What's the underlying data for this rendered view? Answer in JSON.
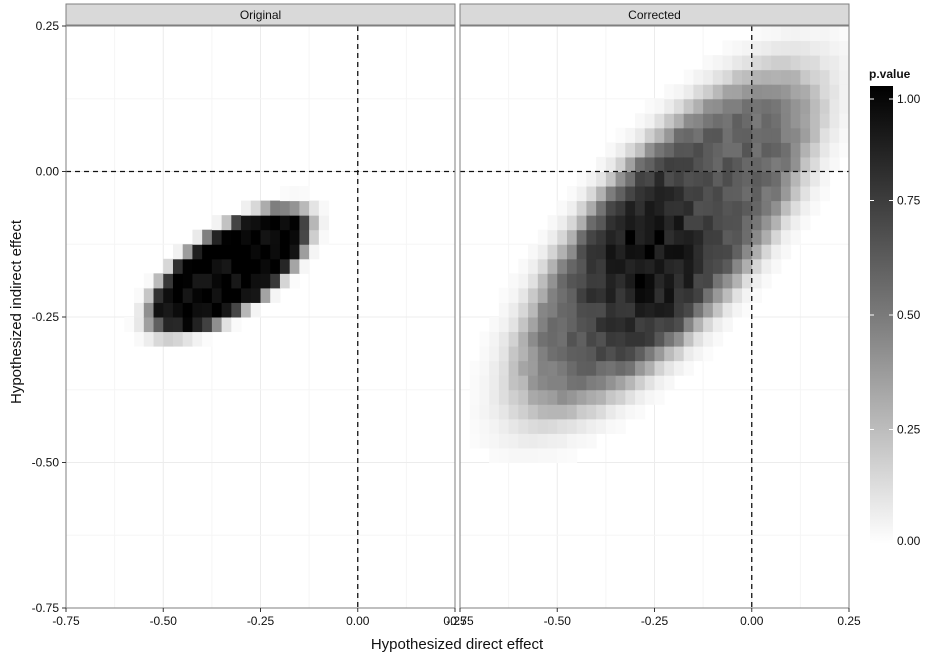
{
  "chart_data": {
    "type": "heatmap",
    "xlabel": "Hypothesized direct effect",
    "ylabel": "Hypothesized indirect effect",
    "xlim": [
      -0.75,
      0.25
    ],
    "ylim": [
      -0.75,
      0.25
    ],
    "x_ticks": [
      "-0.75",
      "-0.50",
      "-0.25",
      "0.00",
      "0.25"
    ],
    "y_ticks": [
      "-0.75",
      "-0.50",
      "-0.25",
      "0.00",
      "0.25"
    ],
    "reference_lines": {
      "x": 0.0,
      "y": 0.0,
      "style": "dashed"
    },
    "grid": true,
    "legend": {
      "title": "p.value",
      "ticks": [
        "0.00",
        "0.25",
        "0.50",
        "0.75",
        "1.00"
      ],
      "range": [
        0,
        1
      ],
      "placement": "right",
      "color_low": "#ffffff",
      "color_high": "#000000"
    },
    "panels": [
      {
        "name": "Original",
        "ellipse": {
          "center_x": -0.33,
          "center_y": -0.17,
          "semi_major": 0.22,
          "semi_minor": 0.075,
          "angle_deg": 22
        },
        "plateau_p": 1.0,
        "edge_softness": 0.06
      },
      {
        "name": "Corrected",
        "ellipse": {
          "center_x": -0.22,
          "center_y": -0.12,
          "semi_major": 0.44,
          "semi_minor": 0.16,
          "angle_deg": 35
        },
        "peak_p": 0.95,
        "peak_x": -0.27,
        "peak_y": -0.15
      }
    ]
  }
}
